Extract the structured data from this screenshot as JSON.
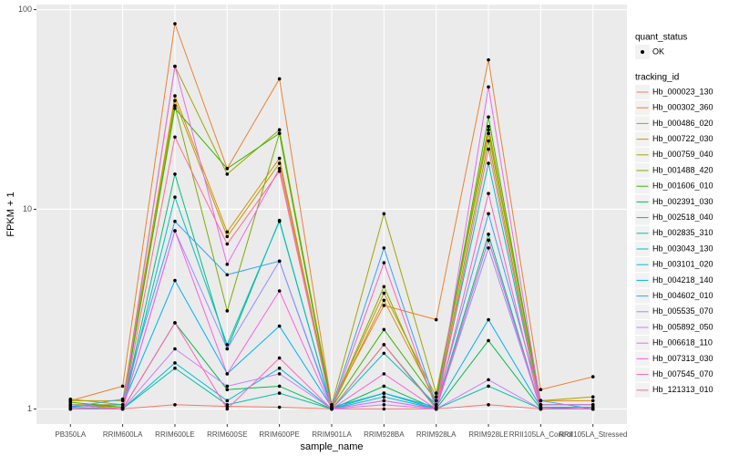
{
  "chart_data": {
    "type": "line",
    "x_label": "sample_name",
    "y_label": "FPKM + 1",
    "categories": [
      "PB350LA",
      "RRIM600LA",
      "RRIM600LE",
      "RRIM600SE",
      "RRIM600PE",
      "RRIM901LA",
      "RRIM928BA",
      "RRIM928LA",
      "RRIM928LE",
      "RRII105LA_Control",
      "RRII105LA_Stressed"
    ],
    "ylog": true,
    "ylim": [
      0.84,
      106
    ],
    "yticks": [
      1,
      10,
      100
    ],
    "grid": true,
    "point_legend_title": "quant_status",
    "point_legend": [
      "OK"
    ],
    "point_color": "#000000",
    "legend_title": "tracking_id",
    "legend_position": "right",
    "series": [
      {
        "name": "Hb_000023_130",
        "color": "#F8766D",
        "values": [
          1.05,
          1.0,
          1.05,
          1.03,
          1.02,
          1.0,
          1.0,
          1.0,
          1.05,
          1.0,
          1.0
        ]
      },
      {
        "name": "Hb_000302_360",
        "color": "#EA8331",
        "values": [
          1.1,
          1.3,
          85,
          16,
          45,
          1.05,
          3.3,
          2.8,
          56,
          1.25,
          1.45
        ]
      },
      {
        "name": "Hb_000486_020",
        "color": "#D89000",
        "values": [
          1.05,
          1.05,
          37,
          7.7,
          18,
          1.02,
          3.5,
          1.1,
          25,
          1.1,
          1.1
        ]
      },
      {
        "name": "Hb_000722_030",
        "color": "#C09B00",
        "values": [
          1.1,
          1.1,
          35,
          7.3,
          17,
          1.03,
          3.8,
          1.15,
          26,
          1.05,
          1.05
        ]
      },
      {
        "name": "Hb_000759_040",
        "color": "#A3A500",
        "values": [
          1.12,
          1.05,
          52,
          15,
          25,
          1.05,
          9.5,
          1.2,
          24,
          1.1,
          1.15
        ]
      },
      {
        "name": "Hb_001488_420",
        "color": "#7CAE00",
        "values": [
          1.05,
          1.02,
          33,
          3.1,
          24,
          1.02,
          4.1,
          1.05,
          22,
          1.02,
          1.02
        ]
      },
      {
        "name": "Hb_001606_010",
        "color": "#39B600",
        "values": [
          1.08,
          1.02,
          32,
          16,
          24,
          1.02,
          2.5,
          1.1,
          29,
          1.05,
          1.05
        ]
      },
      {
        "name": "Hb_002391_030",
        "color": "#00BB4E",
        "values": [
          1.0,
          1.0,
          2.7,
          1.25,
          1.3,
          1.0,
          1.3,
          1.0,
          2.2,
          1.0,
          1.0
        ]
      },
      {
        "name": "Hb_002518_040",
        "color": "#00BF7D",
        "values": [
          1.05,
          1.0,
          15,
          2.0,
          8.8,
          1.0,
          2.1,
          1.02,
          7.5,
          1.0,
          1.0
        ]
      },
      {
        "name": "Hb_002835_310",
        "color": "#00C1A3",
        "values": [
          1.0,
          1.0,
          1.6,
          1.05,
          1.2,
          1.0,
          1.2,
          1.0,
          1.3,
          1.0,
          1.0
        ]
      },
      {
        "name": "Hb_003043_130",
        "color": "#00BFC4",
        "values": [
          1.02,
          1.0,
          11.5,
          2.1,
          8.7,
          1.0,
          1.9,
          1.05,
          17,
          1.02,
          1.02
        ]
      },
      {
        "name": "Hb_003101_020",
        "color": "#00BAE0",
        "values": [
          1.0,
          1.0,
          1.7,
          1.1,
          1.6,
          1.0,
          1.15,
          1.0,
          7,
          1.0,
          1.0
        ]
      },
      {
        "name": "Hb_004218_140",
        "color": "#00B0F6",
        "values": [
          1.03,
          1.05,
          4.4,
          1.5,
          2.6,
          1.02,
          1.2,
          1.02,
          2.8,
          1.02,
          1.0
        ]
      },
      {
        "name": "Hb_004602_010",
        "color": "#35A2FF",
        "values": [
          1.02,
          1.12,
          8.7,
          4.7,
          5.5,
          1.02,
          6.4,
          1.05,
          9.5,
          1.1,
          1.0
        ]
      },
      {
        "name": "Hb_005535_070",
        "color": "#9590FF",
        "values": [
          1.0,
          1.0,
          7.8,
          2.0,
          5.5,
          1.0,
          1.1,
          1.0,
          6.4,
          1.0,
          1.0
        ]
      },
      {
        "name": "Hb_005892_050",
        "color": "#C77CFF",
        "values": [
          1.0,
          1.0,
          2.0,
          1.3,
          1.5,
          1.0,
          1.05,
          1.0,
          1.4,
          1.0,
          1.0
        ]
      },
      {
        "name": "Hb_006618_110",
        "color": "#E76BF3",
        "values": [
          1.0,
          1.0,
          52,
          5.3,
          16,
          1.0,
          1.1,
          1.0,
          41,
          1.05,
          1.05
        ]
      },
      {
        "name": "Hb_007313_030",
        "color": "#FA62DB",
        "values": [
          1.0,
          1.0,
          7.8,
          1.5,
          3.9,
          1.0,
          1.5,
          1.0,
          7,
          1.0,
          1.0
        ]
      },
      {
        "name": "Hb_007545_070",
        "color": "#FF62BC",
        "values": [
          1.05,
          1.0,
          2.7,
          1.0,
          1.8,
          1.0,
          5.4,
          1.0,
          12,
          1.0,
          1.0
        ]
      },
      {
        "name": "Hb_121313_010",
        "color": "#FF6C91",
        "values": [
          1.0,
          1.0,
          23,
          6.7,
          15.5,
          1.0,
          2.1,
          1.0,
          20,
          1.0,
          1.0
        ]
      }
    ]
  }
}
